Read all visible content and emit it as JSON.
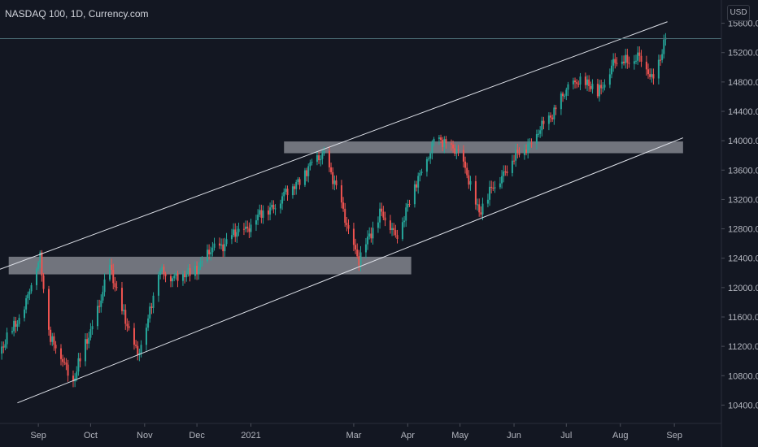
{
  "header": {
    "title": "NASDAQ 100, 1D, Currency.com",
    "currency": "USD"
  },
  "colors": {
    "background": "#131722",
    "up": "#26a69a",
    "down": "#ef5350",
    "trendline": "#e0e3eb",
    "zone": "#9598a1",
    "axis_text": "#b2b5be"
  },
  "chart_data": {
    "type": "candlestick",
    "title": "NASDAQ 100",
    "y_axis": {
      "ticks": [
        10400,
        10800,
        11200,
        11600,
        12000,
        12400,
        12800,
        13200,
        13600,
        14000,
        14400,
        14800,
        15200,
        15600
      ],
      "tick_labels": [
        "10400.0",
        "10800.0",
        "11200.0",
        "11600.0",
        "12000.0",
        "12400.0",
        "12800.0",
        "13200.0",
        "13600.0",
        "14000.0",
        "14400.0",
        "14800.0",
        "15200.0",
        "15600.0"
      ],
      "range": [
        10150,
        15850
      ],
      "position": "right"
    },
    "x_axis": {
      "range": [
        "2020-08-10",
        "2021-09-28"
      ],
      "ticks": [
        {
          "date": "2020-09-01",
          "label": "Sep"
        },
        {
          "date": "2020-10-01",
          "label": "Oct"
        },
        {
          "date": "2020-11-01",
          "label": "Nov"
        },
        {
          "date": "2020-12-01",
          "label": "Dec"
        },
        {
          "date": "2021-01-01",
          "label": "2021"
        },
        {
          "date": "2021-03-01",
          "label": "Mar"
        },
        {
          "date": "2021-04-01",
          "label": "Apr"
        },
        {
          "date": "2021-05-01",
          "label": "May"
        },
        {
          "date": "2021-06-01",
          "label": "Jun"
        },
        {
          "date": "2021-07-01",
          "label": "Jul"
        },
        {
          "date": "2021-08-01",
          "label": "Aug"
        },
        {
          "date": "2021-09-01",
          "label": "Sep"
        }
      ]
    },
    "price_keypoints": [
      [
        "2020-08-10",
        11100
      ],
      [
        "2020-08-25",
        11800
      ],
      [
        "2020-09-02",
        12420
      ],
      [
        "2020-09-08",
        11300
      ],
      [
        "2020-09-21",
        10750
      ],
      [
        "2020-10-01",
        11400
      ],
      [
        "2020-10-12",
        12250
      ],
      [
        "2020-10-28",
        11050
      ],
      [
        "2020-11-04",
        11700
      ],
      [
        "2020-11-09",
        12200
      ],
      [
        "2020-11-25",
        12150
      ],
      [
        "2020-12-10",
        12500
      ],
      [
        "2020-12-31",
        12850
      ],
      [
        "2021-01-20",
        13250
      ],
      [
        "2021-02-12",
        13850
      ],
      [
        "2021-03-04",
        12350
      ],
      [
        "2021-03-16",
        13050
      ],
      [
        "2021-03-25",
        12700
      ],
      [
        "2021-04-16",
        14000
      ],
      [
        "2021-04-29",
        13900
      ],
      [
        "2021-05-12",
        13050
      ],
      [
        "2021-05-28",
        13650
      ],
      [
        "2021-06-15",
        14100
      ],
      [
        "2021-06-29",
        14600
      ],
      [
        "2021-07-08",
        14850
      ],
      [
        "2021-07-19",
        14650
      ],
      [
        "2021-07-28",
        15050
      ],
      [
        "2021-08-11",
        15150
      ],
      [
        "2021-08-19",
        14850
      ],
      [
        "2021-08-24",
        15150
      ],
      [
        "2021-08-26",
        15300
      ],
      [
        "2021-08-27",
        15380
      ]
    ],
    "trendlines": [
      {
        "name": "upper-channel",
        "from": [
          "2020-08-10",
          12250
        ],
        "to": [
          "2021-08-28",
          15620
        ]
      },
      {
        "name": "lower-channel",
        "from": [
          "2020-08-20",
          10430
        ],
        "to": [
          "2021-09-06",
          14040
        ]
      }
    ],
    "zones": [
      {
        "name": "support-zone-12300",
        "from": "2020-08-15",
        "to": "2021-04-03",
        "low": 12180,
        "high": 12420
      },
      {
        "name": "resistance-zone-13900",
        "from": "2021-01-20",
        "to": "2021-09-06",
        "low": 13830,
        "high": 13990
      }
    ],
    "last_price_line": 15390,
    "grid": false,
    "legend": "none"
  }
}
